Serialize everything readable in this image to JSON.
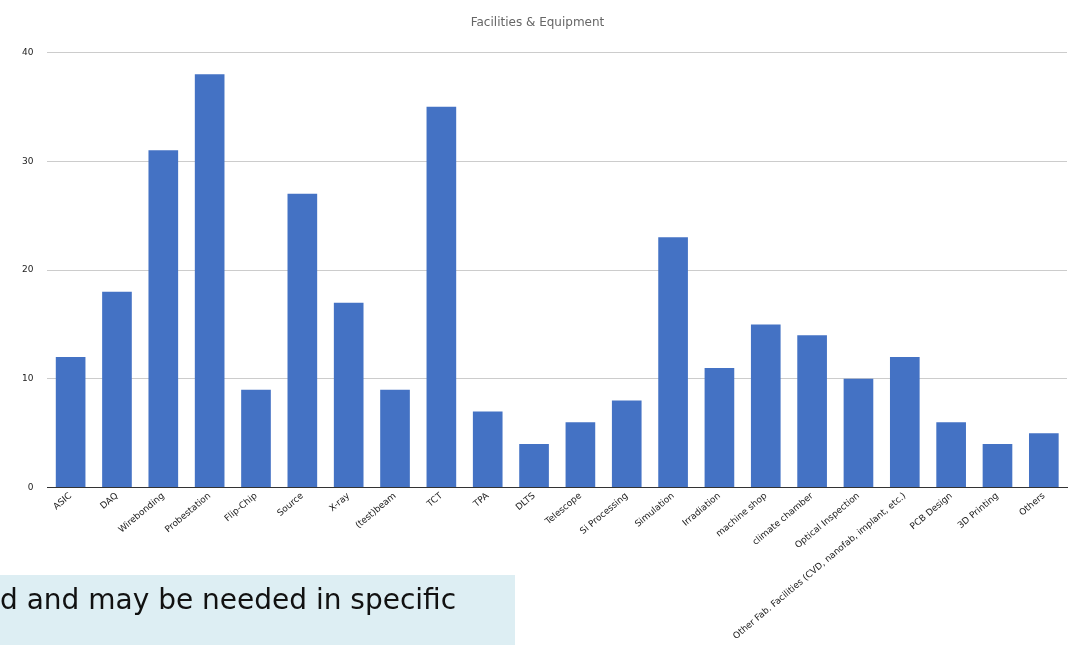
{
  "chart_data": {
    "type": "bar",
    "title": "Facilities & Equipment",
    "categories": [
      "ASIC",
      "DAQ",
      "Wirebonding",
      "Probestation",
      "Flip-Chip",
      "Source",
      "X-ray",
      "(test)beam",
      "TCT",
      "TPA",
      "DLTS",
      "Telescope",
      "Si Processing",
      "Simulation",
      "Irradiation",
      "machine shop",
      "climate chamber",
      "Optical Inspection",
      "Other Fab. Facilities (CVD, nanofab, implant, etc.)",
      "PCB Design",
      "3D Printing",
      "Others"
    ],
    "values": [
      12,
      18,
      31,
      38,
      9,
      27,
      17,
      9,
      35,
      7,
      4,
      6,
      8,
      23,
      11,
      15,
      14,
      10,
      12,
      6,
      4,
      5
    ],
    "color": "#4472c4",
    "ylim": [
      0,
      40
    ],
    "yticks": [
      0,
      10,
      20,
      30,
      40
    ],
    "grid": "y",
    "annotations": [
      "d and may be needed in specific"
    ]
  }
}
